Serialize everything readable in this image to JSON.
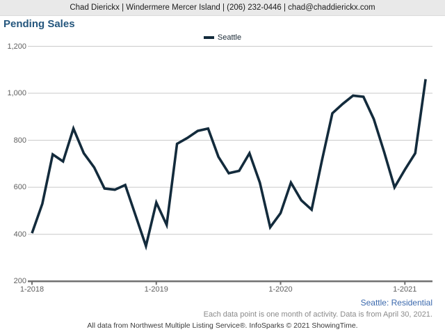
{
  "header": {
    "text": "Chad Dierickx | Windermere Mercer Island | (206) 232-0446 | chad@chaddierickx.com"
  },
  "title": "Pending Sales",
  "legend": {
    "label": "Seattle",
    "swatch_color": "#132b3c"
  },
  "footer": {
    "market": "Seattle: Residential",
    "note": "Each data point is one month of activity. Data is from April 30, 2021.",
    "credit": "All data from Northwest Multiple Listing Service®. InfoSparks © 2021 ShowingTime."
  },
  "colors": {
    "line": "#132b3c",
    "gridline": "#c9c9c9",
    "axis": "#707070",
    "title": "#24567d",
    "header_bg": "#e9e9e9"
  },
  "chart_data": {
    "type": "line",
    "title": "Pending Sales",
    "xlabel": "",
    "ylabel": "",
    "ylim": [
      200,
      1200
    ],
    "grid": "horizontal",
    "legend_position": "top-center",
    "months": [
      "2018-01",
      "2018-02",
      "2018-03",
      "2018-04",
      "2018-05",
      "2018-06",
      "2018-07",
      "2018-08",
      "2018-09",
      "2018-10",
      "2018-11",
      "2018-12",
      "2019-01",
      "2019-02",
      "2019-03",
      "2019-04",
      "2019-05",
      "2019-06",
      "2019-07",
      "2019-08",
      "2019-09",
      "2019-10",
      "2019-11",
      "2019-12",
      "2020-01",
      "2020-02",
      "2020-03",
      "2020-04",
      "2020-05",
      "2020-06",
      "2020-07",
      "2020-08",
      "2020-09",
      "2020-10",
      "2020-11",
      "2020-12",
      "2021-01",
      "2021-02",
      "2021-03"
    ],
    "series": [
      {
        "name": "Seattle",
        "color": "#132b3c",
        "values": [
          405,
          530,
          740,
          710,
          850,
          745,
          685,
          595,
          590,
          610,
          480,
          350,
          535,
          440,
          785,
          810,
          840,
          850,
          730,
          660,
          670,
          745,
          620,
          430,
          490,
          620,
          545,
          505,
          715,
          915,
          955,
          990,
          985,
          890,
          750,
          600,
          675,
          745,
          1060
        ]
      }
    ],
    "yticks": [
      {
        "v": 200,
        "label": "200"
      },
      {
        "v": 400,
        "label": "400"
      },
      {
        "v": 600,
        "label": "600"
      },
      {
        "v": 800,
        "label": "800"
      },
      {
        "v": 1000,
        "label": "1,000"
      },
      {
        "v": 1200,
        "label": "1,200"
      }
    ],
    "xticks": [
      {
        "label": "1-2018",
        "month_index": 0
      },
      {
        "label": "1-2019",
        "month_index": 12
      },
      {
        "label": "1-2020",
        "month_index": 24
      },
      {
        "label": "1-2021",
        "month_index": 36
      }
    ]
  }
}
